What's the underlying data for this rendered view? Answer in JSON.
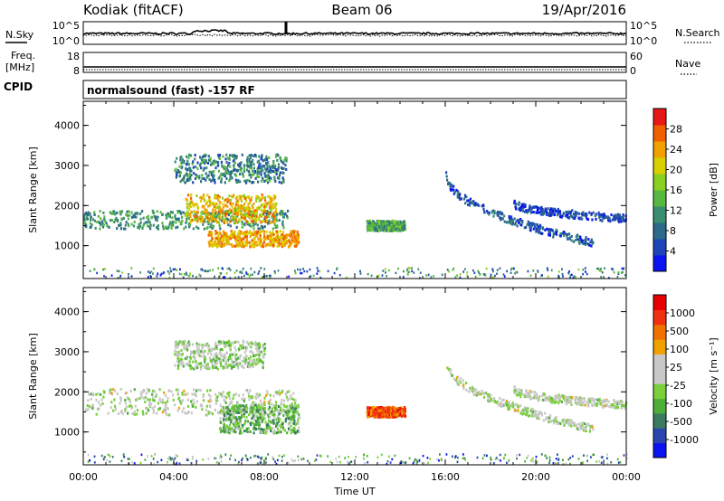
{
  "header": {
    "station": "Kodiak (fitACF)",
    "beam": "Beam 06",
    "date": "19/Apr/2016"
  },
  "top_panels": {
    "nsky_label": "N.Sky",
    "nsky_ticks": [
      "10^5",
      "10^0"
    ],
    "nsearch_label": "N.Search",
    "nsearch_ticks": [
      "10^5",
      "10^0"
    ],
    "freq_label_1": "Freq.",
    "freq_label_2": "[MHz]",
    "freq_ticks": [
      "18",
      "8"
    ],
    "nave_label": "Nave",
    "nave_ticks": [
      "60",
      "0"
    ],
    "cpid_label": "CPID",
    "cpid_text": "normalsound (fast) -157 RF"
  },
  "chart_data": [
    {
      "type": "heatmap",
      "panel": "power",
      "ylabel": "Slant Range [km]",
      "ylim": [
        180,
        4600
      ],
      "y_ticks": [
        "4000",
        "3000",
        "2000",
        "1000"
      ],
      "x_ticks": [
        "00:00",
        "04:00",
        "08:00",
        "12:00",
        "16:00",
        "20:00",
        "00:00"
      ],
      "colorbar_label": "Power [dB]",
      "colorbar_ticks": [
        "28",
        "24",
        "20",
        "16",
        "12",
        "8",
        "4"
      ],
      "colors": [
        "#0a14f0",
        "#1c45b8",
        "#2b6a8a",
        "#3a8e70",
        "#58b840",
        "#8ad020",
        "#d9d000",
        "#f0a000",
        "#f06000",
        "#e81818"
      ],
      "features": [
        {
          "kind": "band",
          "t_start": 0.0,
          "t_end": 9.0,
          "r_start": 1450,
          "r_end": 1900,
          "level": 0.35
        },
        {
          "kind": "band",
          "t_start": 5.5,
          "t_end": 9.5,
          "r_start": 1000,
          "r_end": 1400,
          "level": 0.75
        },
        {
          "kind": "band",
          "t_start": 4.5,
          "t_end": 8.5,
          "r_start": 1600,
          "r_end": 2300,
          "level": 0.7
        },
        {
          "kind": "band",
          "t_start": 4.0,
          "t_end": 9.0,
          "r_start": 2600,
          "r_end": 3300,
          "level": 0.3
        },
        {
          "kind": "band",
          "t_start": 12.5,
          "t_end": 14.2,
          "r_start": 1400,
          "r_end": 1650,
          "level": 0.4
        },
        {
          "kind": "arc",
          "t_start": 16.0,
          "t_end": 22.5,
          "r_start": 2800,
          "r_end": 1100,
          "level": 0.2
        },
        {
          "kind": "arc",
          "t_start": 19.0,
          "t_end": 24.0,
          "r_start": 2100,
          "r_end": 1700,
          "level": 0.15
        }
      ]
    },
    {
      "type": "heatmap",
      "panel": "velocity",
      "ylabel": "Slant Range [km]",
      "ylim": [
        180,
        4600
      ],
      "y_ticks": [
        "4000",
        "3000",
        "2000",
        "1000"
      ],
      "x_ticks": [
        "00:00",
        "04:00",
        "08:00",
        "12:00",
        "16:00",
        "20:00",
        "00:00"
      ],
      "xlabel": "Time UT",
      "colorbar_label": "Velocity [m s⁻¹]",
      "colorbar_ticks": [
        "1000",
        "500",
        "100",
        "25",
        "-25",
        "-100",
        "-500",
        "-1000"
      ],
      "colors": [
        "#0a14f0",
        "#2a45b0",
        "#3a7a60",
        "#4fae3a",
        "#79cf3c",
        "#c8c8c8",
        "#c8c8c8",
        "#f0a000",
        "#f07000",
        "#f03010",
        "#e80000"
      ],
      "features": [
        {
          "kind": "band",
          "t_start": 0.0,
          "t_end": 9.5,
          "r_start": 1450,
          "r_end": 2100,
          "level": 0.5
        },
        {
          "kind": "band",
          "t_start": 6.0,
          "t_end": 9.5,
          "r_start": 1000,
          "r_end": 1700,
          "level": 0.35
        },
        {
          "kind": "band",
          "t_start": 12.5,
          "t_end": 14.2,
          "r_start": 1400,
          "r_end": 1650,
          "level": 0.8
        },
        {
          "kind": "band",
          "t_start": 4.0,
          "t_end": 8.0,
          "r_start": 2600,
          "r_end": 3300,
          "level": 0.45
        },
        {
          "kind": "arc",
          "t_start": 16.0,
          "t_end": 22.5,
          "r_start": 2800,
          "r_end": 1100,
          "level": 0.5
        },
        {
          "kind": "arc",
          "t_start": 19.0,
          "t_end": 24.0,
          "r_start": 2100,
          "r_end": 1700,
          "level": 0.5
        }
      ]
    }
  ]
}
